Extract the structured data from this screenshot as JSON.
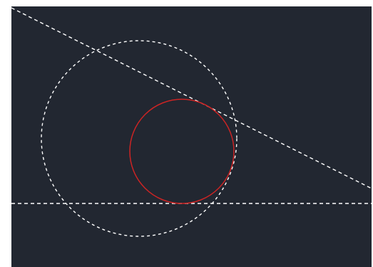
{
  "viewport": {
    "background_color": "#222731",
    "frame_color": "#ffffff"
  },
  "drawing": {
    "entities": [
      {
        "id": "construction-line",
        "kind": "line",
        "color": "#ffffff",
        "linetype": "dashed"
      },
      {
        "id": "horizontal-construction-line",
        "kind": "line",
        "color": "#ffffff",
        "linetype": "dashed"
      },
      {
        "id": "construction-circle",
        "kind": "circle",
        "color": "#ffffff",
        "linetype": "dashed"
      },
      {
        "id": "tangent-circle",
        "kind": "circle",
        "color": "#cc2424",
        "linetype": "continuous"
      }
    ]
  }
}
